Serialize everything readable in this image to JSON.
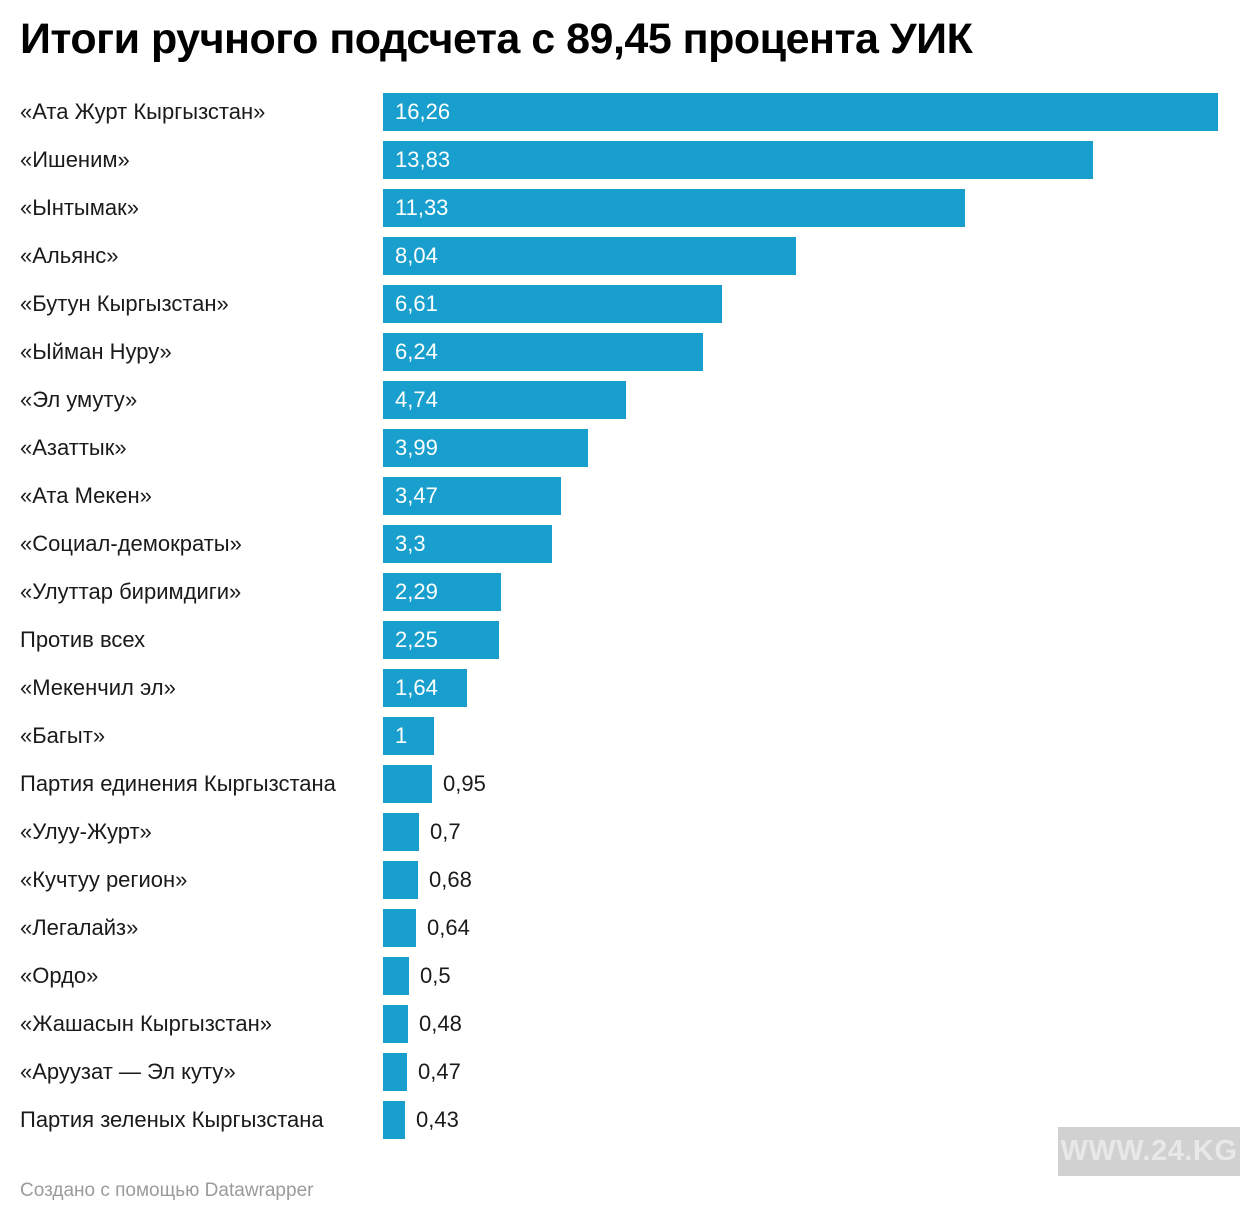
{
  "title": "Итоги ручного подсчета с 89,45 процента УИК",
  "footer": {
    "credit": "Создано с помощью Datawrapper"
  },
  "watermark": {
    "text": "WWW.24.KG"
  },
  "colors": {
    "bar": "#189FCD",
    "title": "#000000",
    "label": "#1A1A1A",
    "value_inside": "#FFFFFF",
    "value_outside": "#1A1A1A",
    "footer": "#9B9B9B",
    "watermark_bg": "#D1D1D1",
    "watermark_text": "#E8E8E8"
  },
  "chart_data": {
    "type": "bar",
    "orientation": "horizontal",
    "title": "Итоги ручного подсчета с 89,45 процента УИК",
    "xlabel": "",
    "ylabel": "",
    "xlim": [
      0,
      16.26
    ],
    "grid": false,
    "legend": false,
    "unit": "percent",
    "value_format": "decimal-comma",
    "categories": [
      "«Ата Журт Кыргызстан»",
      "«Ишеним»",
      "«Ынтымак»",
      "«Альянс»",
      "«Бутун Кыргызстан»",
      "«Ыйман Нуру»",
      "«Эл умуту»",
      "«Азаттык»",
      "«Ата Мекен»",
      "«Социал-демократы»",
      "«Улуттар биримдиги»",
      "Против всех",
      "«Мекенчил эл»",
      "«Багыт»",
      "Партия единения Кыргызстана",
      "«Улуу-Журт»",
      "«Кучтуу регион»",
      "«Легалайз»",
      "«Ордо»",
      "«Жашасын Кыргызстан»",
      "«Аруузат — Эл куту»",
      "Партия зеленых Кыргызстана"
    ],
    "values": [
      16.26,
      13.83,
      11.33,
      8.04,
      6.61,
      6.24,
      4.74,
      3.99,
      3.47,
      3.3,
      2.29,
      2.25,
      1.64,
      1,
      0.95,
      0.7,
      0.68,
      0.64,
      0.5,
      0.48,
      0.47,
      0.43
    ],
    "display_values": [
      "16,26",
      "13,83",
      "11,33",
      "8,04",
      "6,61",
      "6,24",
      "4,74",
      "3,99",
      "3,47",
      "3,3",
      "2,29",
      "2,25",
      "1,64",
      "1",
      "0,95",
      "0,7",
      "0,68",
      "0,64",
      "0,5",
      "0,48",
      "0,47",
      "0,43"
    ]
  }
}
